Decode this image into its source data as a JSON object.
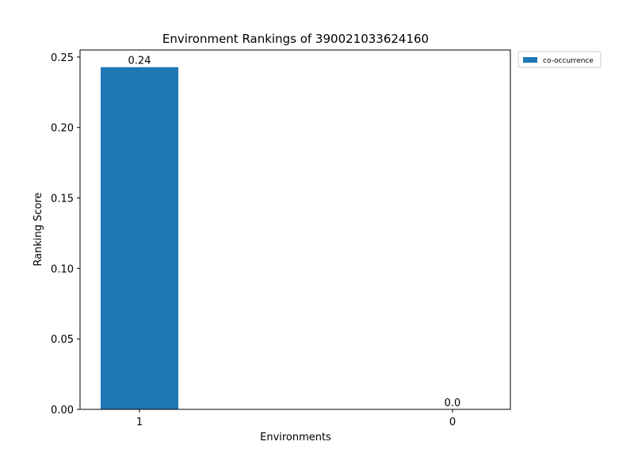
{
  "chart_data": {
    "type": "bar",
    "title": "Environment Rankings of 390021033624160",
    "xlabel": "Environments",
    "ylabel": "Ranking Score",
    "categories": [
      "1",
      "0"
    ],
    "series": [
      {
        "name": "co-occurrence",
        "values": [
          0.2428,
          0.0
        ],
        "color": "#1f77b4"
      }
    ],
    "data_labels": [
      "0.24",
      "0.0"
    ],
    "ylim": [
      0,
      0.255
    ],
    "yticks": [
      0.0,
      0.05,
      0.1,
      0.15,
      0.2,
      0.25
    ],
    "ytick_labels": [
      "0.00",
      "0.05",
      "0.10",
      "0.15",
      "0.20",
      "0.25"
    ],
    "legend_position": "outside-top-right",
    "grid": false
  }
}
